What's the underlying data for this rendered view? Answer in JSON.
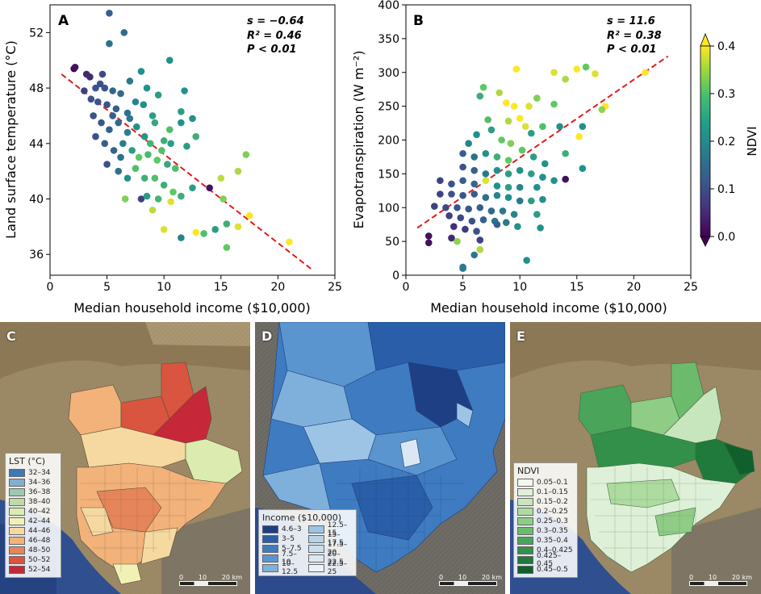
{
  "chart_data": [
    {
      "type": "scatter",
      "panel": "A",
      "xlabel": "Median household income ($10,000)",
      "ylabel": "Land surface temperature (°C)",
      "xlim": [
        0,
        25
      ],
      "ylim": [
        34.5,
        54
      ],
      "xticks": [
        0,
        5,
        10,
        15,
        20,
        25
      ],
      "yticks": [
        36,
        40,
        44,
        48,
        52
      ],
      "stats": {
        "s": "s = −0.64",
        "r2": "R² = 0.46",
        "p": "P < 0.01"
      },
      "trend": {
        "x": [
          1,
          23
        ],
        "y": [
          49.0,
          34.9
        ]
      },
      "points": [
        [
          5.2,
          53.4,
          0.12
        ],
        [
          6.5,
          52.0,
          0.14
        ],
        [
          5.2,
          51.2,
          0.15
        ],
        [
          10.5,
          50.0,
          0.2
        ],
        [
          2.1,
          49.4,
          0.0
        ],
        [
          2.2,
          49.5,
          0.02
        ],
        [
          3.5,
          48.8,
          0.05
        ],
        [
          8.0,
          49.2,
          0.2
        ],
        [
          4.0,
          48.0,
          0.1
        ],
        [
          4.4,
          48.3,
          0.1
        ],
        [
          4.8,
          48.0,
          0.1
        ],
        [
          5.5,
          47.8,
          0.13
        ],
        [
          6.2,
          47.6,
          0.14
        ],
        [
          3.0,
          47.8,
          0.08
        ],
        [
          3.6,
          47.2,
          0.1
        ],
        [
          4.2,
          47.0,
          0.1
        ],
        [
          5.0,
          46.8,
          0.11
        ],
        [
          5.8,
          46.5,
          0.12
        ],
        [
          6.8,
          46.2,
          0.15
        ],
        [
          7.5,
          47.0,
          0.18
        ],
        [
          8.2,
          46.8,
          0.2
        ],
        [
          9.0,
          46.0,
          0.22
        ],
        [
          11.8,
          47.8,
          0.2
        ],
        [
          11.5,
          46.3,
          0.22
        ],
        [
          12.5,
          45.8,
          0.2
        ],
        [
          3.8,
          46.0,
          0.1
        ],
        [
          4.5,
          45.5,
          0.11
        ],
        [
          5.2,
          45.0,
          0.12
        ],
        [
          6.0,
          45.5,
          0.14
        ],
        [
          6.8,
          44.8,
          0.17
        ],
        [
          7.6,
          45.2,
          0.2
        ],
        [
          8.3,
          44.5,
          0.21
        ],
        [
          9.2,
          45.5,
          0.24
        ],
        [
          10.0,
          44.2,
          0.25
        ],
        [
          10.6,
          44.0,
          0.22
        ],
        [
          4.0,
          44.5,
          0.1
        ],
        [
          4.8,
          44.0,
          0.12
        ],
        [
          5.6,
          43.5,
          0.13
        ],
        [
          6.4,
          44.0,
          0.17
        ],
        [
          7.2,
          43.5,
          0.22
        ],
        [
          7.8,
          43.0,
          0.3
        ],
        [
          8.6,
          43.2,
          0.27
        ],
        [
          9.4,
          42.8,
          0.3
        ],
        [
          10.3,
          42.5,
          0.24
        ],
        [
          11.0,
          42.2,
          0.28
        ],
        [
          12.0,
          43.8,
          0.22
        ],
        [
          12.8,
          44.5,
          0.25
        ],
        [
          5.0,
          42.5,
          0.1
        ],
        [
          6.0,
          42.0,
          0.15
        ],
        [
          6.8,
          41.5,
          0.2
        ],
        [
          7.5,
          42.2,
          0.28
        ],
        [
          8.3,
          41.5,
          0.25
        ],
        [
          9.2,
          41.5,
          0.28
        ],
        [
          10.0,
          41.0,
          0.25
        ],
        [
          10.8,
          40.5,
          0.3
        ],
        [
          11.5,
          40.2,
          0.25
        ],
        [
          12.5,
          40.8,
          0.22
        ],
        [
          6.6,
          40.0,
          0.32
        ],
        [
          8.0,
          40.0,
          0.08
        ],
        [
          8.5,
          40.2,
          0.22
        ],
        [
          9.5,
          40.0,
          0.26
        ],
        [
          10.6,
          39.8,
          0.38
        ],
        [
          9.0,
          39.2,
          0.36
        ],
        [
          14.0,
          40.8,
          0.02
        ],
        [
          15.0,
          41.5,
          0.36
        ],
        [
          15.2,
          40.0,
          0.32
        ],
        [
          16.5,
          42.0,
          0.35
        ],
        [
          17.2,
          43.2,
          0.32
        ],
        [
          12.8,
          37.6,
          0.4
        ],
        [
          13.5,
          37.5,
          0.28
        ],
        [
          14.5,
          37.8,
          0.22
        ],
        [
          15.5,
          36.5,
          0.3
        ],
        [
          15.5,
          38.2,
          0.25
        ],
        [
          16.5,
          38.0,
          0.38
        ],
        [
          17.5,
          38.8,
          0.4
        ],
        [
          10.0,
          37.8,
          0.38
        ],
        [
          11.5,
          37.2,
          0.18
        ],
        [
          21.0,
          36.9,
          0.4
        ],
        [
          3.2,
          49.0,
          0.05
        ],
        [
          4.6,
          49.0,
          0.09
        ],
        [
          7.0,
          48.5,
          0.16
        ],
        [
          8.5,
          48.0,
          0.2
        ],
        [
          9.5,
          47.5,
          0.22
        ],
        [
          5.5,
          46.0,
          0.12
        ],
        [
          7.0,
          45.8,
          0.16
        ],
        [
          8.8,
          44.0,
          0.26
        ],
        [
          9.8,
          43.5,
          0.28
        ],
        [
          6.2,
          43.0,
          0.15
        ],
        [
          11.5,
          45.5,
          0.2
        ],
        [
          10.5,
          45.0,
          0.28
        ]
      ]
    },
    {
      "type": "scatter",
      "panel": "B",
      "xlabel": "Median household income ($10,000)",
      "ylabel": "Evapotranspiration (W m⁻²)",
      "xlim": [
        0,
        25
      ],
      "ylim": [
        0,
        400
      ],
      "xticks": [
        0,
        5,
        10,
        15,
        20,
        25
      ],
      "yticks": [
        0,
        50,
        100,
        150,
        200,
        250,
        300,
        350,
        400
      ],
      "stats": {
        "s": "s = 11.6",
        "r2": "R² = 0.38",
        "p": "P < 0.01"
      },
      "trend": {
        "x": [
          1,
          23
        ],
        "y": [
          70,
          324
        ]
      },
      "points": [
        [
          9.7,
          305,
          0.4
        ],
        [
          13.0,
          300,
          0.38
        ],
        [
          14.0,
          290,
          0.35
        ],
        [
          15.0,
          305,
          0.4
        ],
        [
          15.8,
          308,
          0.3
        ],
        [
          16.6,
          298,
          0.38
        ],
        [
          21.0,
          300,
          0.4
        ],
        [
          6.8,
          278,
          0.3
        ],
        [
          8.2,
          270,
          0.35
        ],
        [
          8.8,
          255,
          0.4
        ],
        [
          9.5,
          250,
          0.4
        ],
        [
          10.8,
          250,
          0.38
        ],
        [
          11.5,
          262,
          0.32
        ],
        [
          13.0,
          253,
          0.3
        ],
        [
          17.5,
          250,
          0.4
        ],
        [
          17.2,
          245,
          0.33
        ],
        [
          6.5,
          265,
          0.25
        ],
        [
          7.2,
          230,
          0.28
        ],
        [
          9.0,
          228,
          0.35
        ],
        [
          10.0,
          232,
          0.4
        ],
        [
          10.5,
          220,
          0.38
        ],
        [
          12.0,
          220,
          0.28
        ],
        [
          15.5,
          220,
          0.2
        ],
        [
          13.5,
          220,
          0.2
        ],
        [
          14.0,
          180,
          0.25
        ],
        [
          15.2,
          205,
          0.4
        ],
        [
          11.0,
          210,
          0.22
        ],
        [
          7.5,
          215,
          0.22
        ],
        [
          8.4,
          200,
          0.3
        ],
        [
          9.2,
          195,
          0.32
        ],
        [
          6.2,
          208,
          0.2
        ],
        [
          5.5,
          195,
          0.18
        ],
        [
          5.0,
          180,
          0.12
        ],
        [
          6.0,
          175,
          0.15
        ],
        [
          7.0,
          180,
          0.2
        ],
        [
          8.0,
          175,
          0.25
        ],
        [
          9.0,
          170,
          0.3
        ],
        [
          10.2,
          185,
          0.3
        ],
        [
          11.2,
          175,
          0.22
        ],
        [
          12.2,
          165,
          0.2
        ],
        [
          15.5,
          158,
          0.2
        ],
        [
          5.0,
          160,
          0.1
        ],
        [
          6.0,
          155,
          0.12
        ],
        [
          7.0,
          150,
          0.16
        ],
        [
          8.0,
          155,
          0.2
        ],
        [
          9.0,
          150,
          0.22
        ],
        [
          10.0,
          155,
          0.2
        ],
        [
          11.0,
          150,
          0.22
        ],
        [
          12.0,
          145,
          0.2
        ],
        [
          13.0,
          140,
          0.2
        ],
        [
          14.0,
          142,
          0.02
        ],
        [
          3.0,
          140,
          0.08
        ],
        [
          4.0,
          135,
          0.1
        ],
        [
          5.0,
          140,
          0.12
        ],
        [
          6.0,
          135,
          0.14
        ],
        [
          7.0,
          140,
          0.38
        ],
        [
          8.0,
          132,
          0.2
        ],
        [
          9.0,
          130,
          0.22
        ],
        [
          10.0,
          130,
          0.18
        ],
        [
          11.5,
          130,
          0.2
        ],
        [
          3.0,
          120,
          0.08
        ],
        [
          4.0,
          120,
          0.1
        ],
        [
          5.0,
          118,
          0.11
        ],
        [
          6.0,
          120,
          0.12
        ],
        [
          7.0,
          115,
          0.15
        ],
        [
          8.0,
          118,
          0.18
        ],
        [
          9.0,
          115,
          0.2
        ],
        [
          10.0,
          110,
          0.16
        ],
        [
          11.0,
          110,
          0.22
        ],
        [
          12.0,
          112,
          0.2
        ],
        [
          2.5,
          102,
          0.08
        ],
        [
          3.5,
          100,
          0.09
        ],
        [
          4.5,
          100,
          0.1
        ],
        [
          5.5,
          98,
          0.11
        ],
        [
          6.5,
          100,
          0.12
        ],
        [
          7.5,
          95,
          0.14
        ],
        [
          8.5,
          95,
          0.16
        ],
        [
          9.5,
          90,
          0.18
        ],
        [
          11.5,
          90,
          0.22
        ],
        [
          3.8,
          88,
          0.08
        ],
        [
          4.8,
          85,
          0.09
        ],
        [
          5.8,
          80,
          0.1
        ],
        [
          6.8,
          82,
          0.12
        ],
        [
          7.8,
          80,
          0.15
        ],
        [
          8.8,
          78,
          0.16
        ],
        [
          9.8,
          72,
          0.2
        ],
        [
          11.8,
          70,
          0.2
        ],
        [
          4.2,
          72,
          0.06
        ],
        [
          5.2,
          68,
          0.07
        ],
        [
          6.2,
          65,
          0.1
        ],
        [
          8.0,
          75,
          0.12
        ],
        [
          2.0,
          58,
          0.02
        ],
        [
          2.0,
          48,
          0.02
        ],
        [
          4.0,
          55,
          0.05
        ],
        [
          4.5,
          50,
          0.33
        ],
        [
          6.5,
          52,
          0.08
        ],
        [
          5.0,
          10,
          0.16
        ],
        [
          5.0,
          12,
          0.16
        ],
        [
          6.0,
          30,
          0.16
        ],
        [
          6.5,
          38,
          0.35
        ],
        [
          10.6,
          22,
          0.2
        ]
      ]
    }
  ],
  "colorbar": {
    "label": "NDVI",
    "ticks": [
      "0.0",
      "0.1",
      "0.2",
      "0.3",
      "0.4"
    ]
  },
  "maps": {
    "C": {
      "letter": "C",
      "legend_title": "LST (°C)",
      "items": [
        {
          "label": "32–34",
          "color": "#3d79b5"
        },
        {
          "label": "34–36",
          "color": "#7fb0cf"
        },
        {
          "label": "36–38",
          "color": "#9dc9b0"
        },
        {
          "label": "38–40",
          "color": "#bcdba8"
        },
        {
          "label": "40–42",
          "color": "#dcebb0"
        },
        {
          "label": "42–44",
          "color": "#f2f1b5"
        },
        {
          "label": "44–46",
          "color": "#f6d9a0"
        },
        {
          "label": "46–48",
          "color": "#f2b27a"
        },
        {
          "label": "48–50",
          "color": "#e6855a"
        },
        {
          "label": "50–52",
          "color": "#d9553f"
        },
        {
          "label": "52–54",
          "color": "#c6283a"
        }
      ]
    },
    "D": {
      "letter": "D",
      "legend_title": "Income ($10,000)",
      "items": [
        {
          "label": "4.6–3",
          "color": "#1f3f85"
        },
        {
          "label": "3–5",
          "color": "#2a5ea8"
        },
        {
          "label": "5–7.5",
          "color": "#3f7bc0"
        },
        {
          "label": "7.5–10",
          "color": "#5b95cf"
        },
        {
          "label": "10–12.5",
          "color": "#7fb0dc"
        },
        {
          "label": "12.5–15",
          "color": "#9ec4e5"
        },
        {
          "label": "15–17.5",
          "color": "#b6d3ea"
        },
        {
          "label": "17.5–20",
          "color": "#c9def0"
        },
        {
          "label": "20–22.5",
          "color": "#dbe8f4"
        },
        {
          "label": "22.5–25",
          "color": "#eaf1f8"
        }
      ]
    },
    "E": {
      "letter": "E",
      "legend_title": "NDVI",
      "items": [
        {
          "label": "0.05–0.1",
          "color": "#f1f7ee"
        },
        {
          "label": "0.1–0.15",
          "color": "#dff0d8"
        },
        {
          "label": "0.15–0.2",
          "color": "#c8e6bd"
        },
        {
          "label": "0.2–0.25",
          "color": "#aedba0"
        },
        {
          "label": "0.25–0.3",
          "color": "#8fcc85"
        },
        {
          "label": "0.3–0.35",
          "color": "#6cbb6c"
        },
        {
          "label": "0.35–0.4",
          "color": "#4aa55a"
        },
        {
          "label": "0.4–0.425",
          "color": "#33904b"
        },
        {
          "label": "0.425–0.45",
          "color": "#1f7a3b"
        },
        {
          "label": "0.45–0.5",
          "color": "#10602d"
        }
      ]
    }
  },
  "scalebar": {
    "labels": [
      "0",
      "10",
      "20 km"
    ]
  }
}
